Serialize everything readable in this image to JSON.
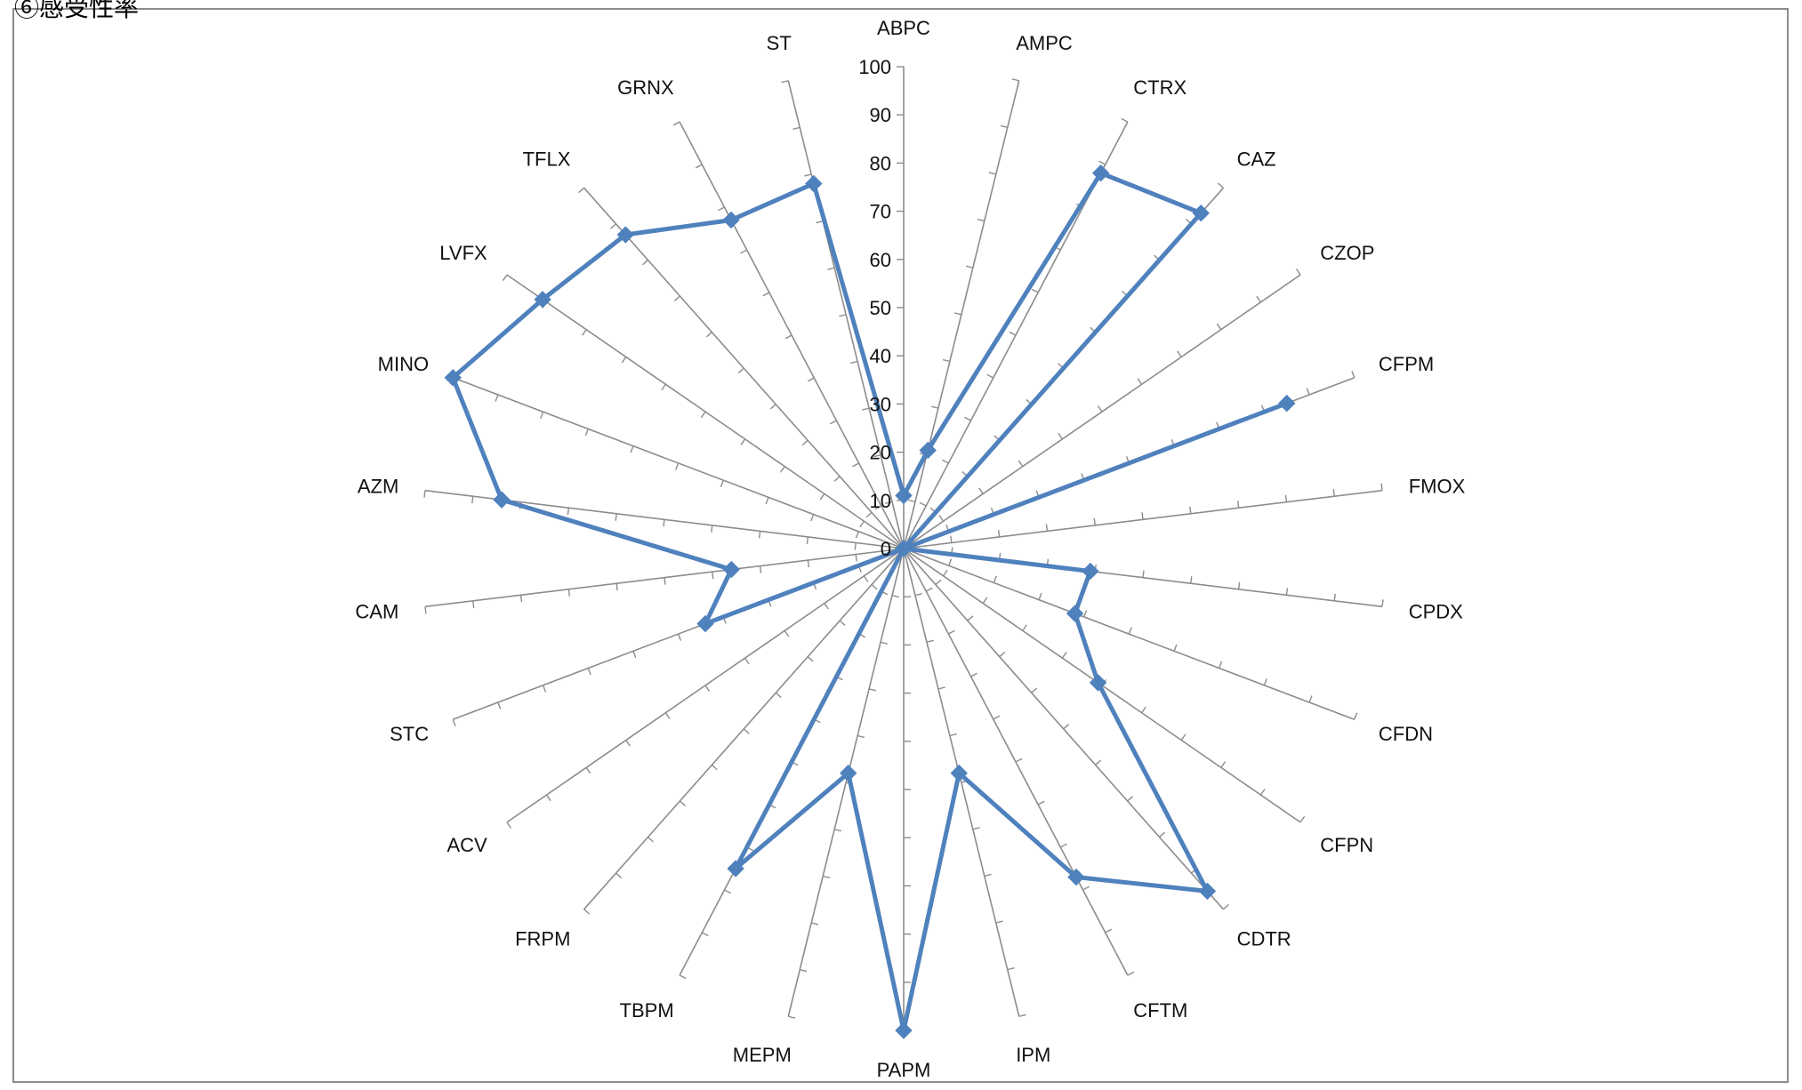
{
  "header": {
    "corner_title": "⑥感受性率"
  },
  "colors": {
    "series": "#4f81bd",
    "axis": "#8c8c8c",
    "text": "#111111"
  },
  "chart_data": {
    "type": "radar",
    "title": "",
    "categories": [
      "ABPC",
      "AMPC",
      "CTRX",
      "CAZ",
      "CZOP",
      "CFPM",
      "FMOX",
      "CPDX",
      "CFDN",
      "CFPN",
      "CDTR",
      "CFTM",
      "IPM",
      "PAPM",
      "MEPM",
      "TBPM",
      "FRPM",
      "ACV",
      "STC",
      "CAM",
      "AZM",
      "MINO",
      "LVFX",
      "TFLX",
      "GRNX",
      "ST"
    ],
    "series": [
      {
        "values": [
          11,
          21,
          88,
          93,
          0,
          85,
          0,
          39,
          38,
          49,
          95,
          77,
          48,
          100,
          48,
          75,
          0,
          0,
          44,
          36,
          84,
          100,
          91,
          87,
          77,
          78
        ]
      }
    ],
    "rlim": [
      0,
      100
    ],
    "r_ticks": [
      "0",
      "10",
      "20",
      "30",
      "40",
      "50",
      "60",
      "70",
      "80",
      "90",
      "100"
    ],
    "grid": false,
    "legend": "none",
    "marker": "diamond"
  }
}
